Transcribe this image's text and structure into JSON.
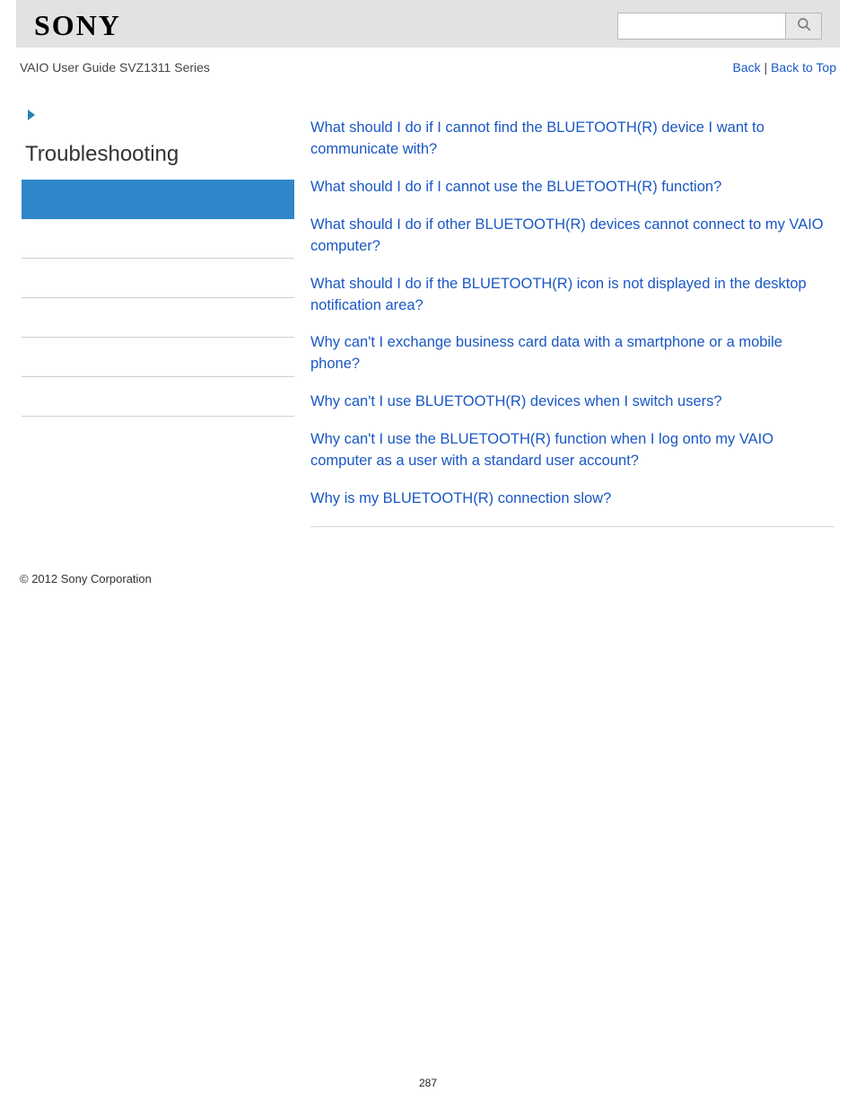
{
  "colors": {
    "header_bg": "#e2e2e2",
    "link": "#1a57c4",
    "sidebar_active_bg": "#2f87c9",
    "arrow": "#2a7fb0",
    "border": "#cfcfcf",
    "text": "#333333",
    "search_icon": "#7a7a7a"
  },
  "brand": "SONY",
  "guide_title": "VAIO User Guide SVZ1311 Series",
  "nav": {
    "back": "Back",
    "sep": " | ",
    "top": "Back to Top"
  },
  "search": {
    "placeholder": ""
  },
  "sidebar": {
    "title": "Troubleshooting",
    "active_index": 0,
    "item_count": 6
  },
  "questions": [
    "What should I do if I cannot find the BLUETOOTH(R) device I want to communicate with?",
    "What should I do if I cannot use the BLUETOOTH(R) function?",
    "What should I do if other BLUETOOTH(R) devices cannot connect to my VAIO computer?",
    "What should I do if the BLUETOOTH(R) icon is not displayed in the desktop notification area?",
    "Why can't I exchange business card data with a smartphone or a mobile phone?",
    "Why can't I use BLUETOOTH(R) devices when I switch users?",
    "Why can't I use the BLUETOOTH(R) function when I log onto my VAIO computer as a user with a standard user account?",
    "Why is my BLUETOOTH(R) connection slow?"
  ],
  "copyright": "© 2012 Sony Corporation",
  "page_number": "287"
}
